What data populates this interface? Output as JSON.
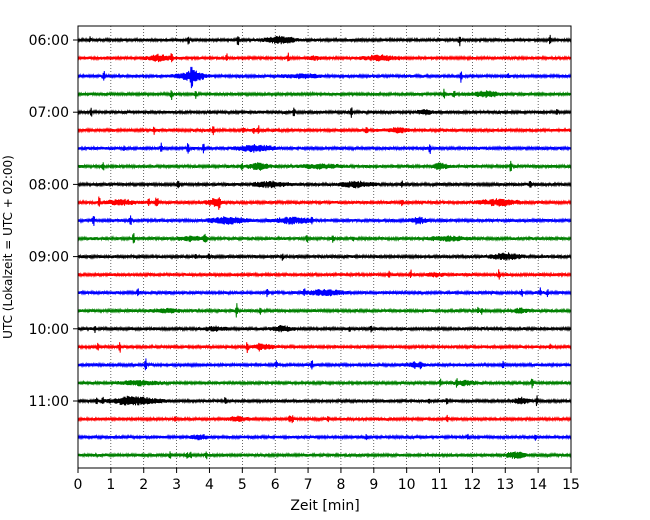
{
  "chart_data": {
    "type": "line",
    "title": "",
    "xlabel": "Zeit  [min]",
    "ylabel": "UTC (Lokalzeit = UTC + 02:00)",
    "xlim": [
      0,
      15
    ],
    "x_ticks": [
      "0",
      "1",
      "2",
      "3",
      "4",
      "5",
      "6",
      "7",
      "8",
      "9",
      "10",
      "11",
      "12",
      "13",
      "14",
      "15"
    ],
    "y_tick_labels": [
      "06:00",
      "07:00",
      "08:00",
      "09:00",
      "10:00",
      "11:00"
    ],
    "grid": "vertical dotted lines at each minute",
    "legend": "none",
    "trace_interval_minutes": 15,
    "start_time": "06:00",
    "trace_count": 24,
    "color_cycle": [
      "#000000",
      "#ff0000",
      "#0000ff",
      "#008000"
    ],
    "series_description": "Seismogram traces, one per 15-minute interval, amplitude vs. time in minutes"
  }
}
